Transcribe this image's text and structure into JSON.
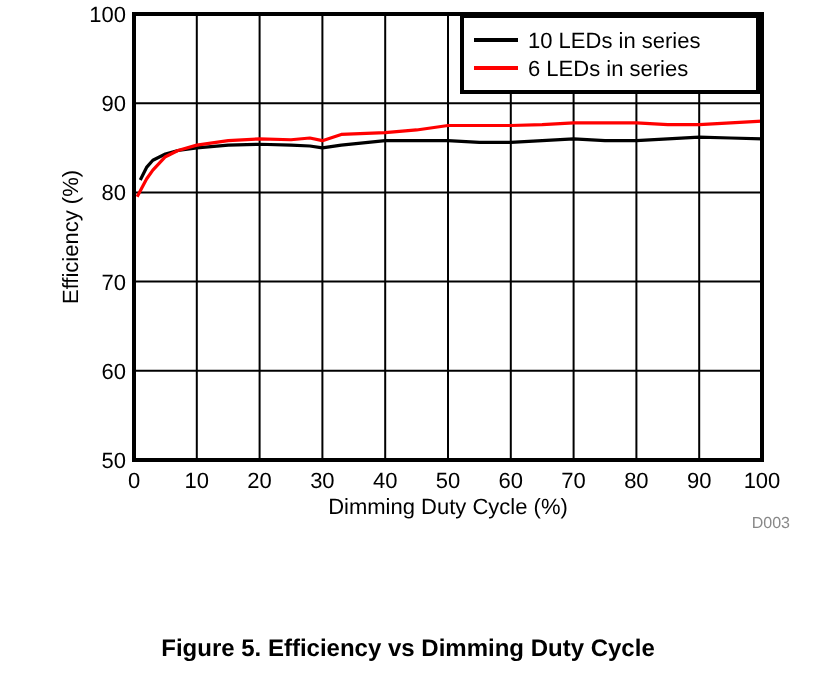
{
  "chart_data": {
    "type": "line",
    "xlabel": "Dimming Duty Cycle (%)",
    "ylabel": "Efficiency (%)",
    "xlim": [
      0,
      100
    ],
    "ylim": [
      50,
      100
    ],
    "xticks": [
      0,
      10,
      20,
      30,
      40,
      50,
      60,
      70,
      80,
      90,
      100
    ],
    "yticks": [
      50,
      60,
      70,
      80,
      90,
      100
    ],
    "grid": true,
    "legend": "top right",
    "line_style": "solid",
    "annotations": [
      "D003",
      "Figure 5. Efficiency vs Dimming Duty Cycle"
    ],
    "series": [
      {
        "name": "10 LEDs in series",
        "color": "#000000",
        "x": [
          1,
          2,
          3,
          5,
          7,
          10,
          15,
          20,
          25,
          28,
          30,
          33,
          40,
          45,
          50,
          55,
          60,
          65,
          70,
          75,
          80,
          85,
          90,
          95,
          100
        ],
        "values": [
          81.4,
          82.8,
          83.6,
          84.3,
          84.7,
          85,
          85.3,
          85.4,
          85.3,
          85.2,
          85,
          85.3,
          85.8,
          85.8,
          85.8,
          85.6,
          85.6,
          85.8,
          86,
          85.8,
          85.8,
          86,
          86.2,
          86.1,
          86
        ]
      },
      {
        "name": "6 LEDs in series",
        "color": "#ff0000",
        "x": [
          0.5,
          2,
          3,
          5,
          7,
          10,
          15,
          20,
          25,
          28,
          30,
          33,
          40,
          45,
          50,
          55,
          60,
          65,
          70,
          75,
          80,
          85,
          90,
          95,
          100
        ],
        "values": [
          79.5,
          81.5,
          82.5,
          84,
          84.7,
          85.3,
          85.8,
          86,
          85.9,
          86.1,
          85.8,
          86.5,
          86.7,
          87,
          87.5,
          87.5,
          87.5,
          87.6,
          87.8,
          87.8,
          87.8,
          87.6,
          87.6,
          87.8,
          88
        ]
      }
    ]
  }
}
